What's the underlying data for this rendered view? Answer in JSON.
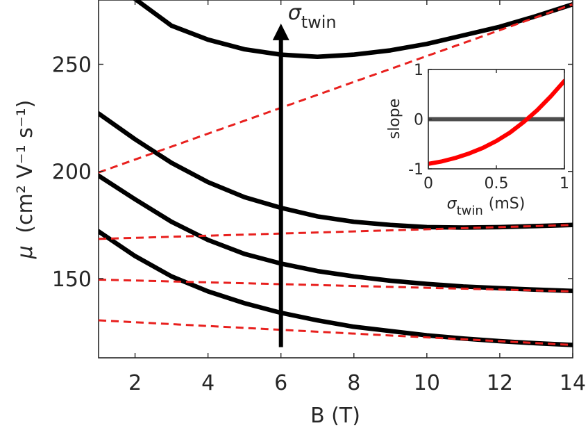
{
  "chart_data": [
    {
      "type": "line",
      "xlabel": "B (T)",
      "ylabel": {
        "symbol": "μ",
        "unit": "(cm² V⁻¹ s⁻¹)"
      },
      "xlim": [
        1,
        14
      ],
      "ylim": [
        113,
        280
      ],
      "xticks": [
        2,
        4,
        6,
        8,
        10,
        12,
        14
      ],
      "yticks": [
        150,
        200,
        250
      ],
      "grid": false,
      "arrow": {
        "x": 6,
        "y_from": 118,
        "y_to": 269,
        "label": "σ",
        "label_sub": "twin"
      },
      "series": [
        {
          "style": "solid",
          "color": "#000000",
          "x": [
            1,
            2,
            3,
            4,
            5,
            6,
            7,
            8,
            9,
            10,
            11,
            12,
            13,
            14
          ],
          "y": [
            310,
            280.5,
            268,
            261.5,
            257,
            254.5,
            253.5,
            254.5,
            256.5,
            259.5,
            263.5,
            267.5,
            272.5,
            278
          ]
        },
        {
          "style": "solid",
          "color": "#000000",
          "x": [
            1,
            2,
            3,
            4,
            5,
            6,
            7,
            8,
            9,
            10,
            11,
            12,
            13,
            14
          ],
          "y": [
            227,
            215,
            204,
            195,
            188,
            183,
            179,
            176.5,
            175,
            174,
            173.8,
            174,
            174.5,
            175
          ]
        },
        {
          "style": "solid",
          "color": "#000000",
          "x": [
            1,
            2,
            3,
            4,
            5,
            6,
            7,
            8,
            9,
            10,
            11,
            12,
            13,
            14
          ],
          "y": [
            198,
            187,
            176.5,
            168,
            161.5,
            157,
            153.5,
            151,
            149,
            147.5,
            146.3,
            145.5,
            144.8,
            144.2
          ]
        },
        {
          "style": "solid",
          "color": "#000000",
          "x": [
            1,
            2,
            3,
            4,
            5,
            6,
            7,
            8,
            9,
            10,
            11,
            12,
            13,
            14
          ],
          "y": [
            172,
            160.5,
            151,
            144,
            138.5,
            134,
            130.5,
            127.5,
            125.5,
            123.5,
            122,
            120.8,
            119.8,
            119
          ]
        },
        {
          "style": "dashed",
          "color": "#e8201e",
          "x": [
            1,
            14
          ],
          "y": [
            199.5,
            278
          ]
        },
        {
          "style": "dashed",
          "color": "#e8201e",
          "x": [
            1,
            14
          ],
          "y": [
            168.5,
            175
          ]
        },
        {
          "style": "dashed",
          "color": "#e8201e",
          "x": [
            1,
            14
          ],
          "y": [
            149.5,
            144
          ]
        },
        {
          "style": "dashed",
          "color": "#e8201e",
          "x": [
            1,
            14
          ],
          "y": [
            130.5,
            119
          ]
        }
      ]
    },
    {
      "type": "line",
      "xlabel": {
        "symbol": "σ",
        "sub": "twin",
        "unit": "(mS)"
      },
      "ylabel": "slope",
      "xlim": [
        0,
        1
      ],
      "ylim": [
        -1,
        1
      ],
      "xticks": [
        0,
        0.5,
        1
      ],
      "xtick_labels": [
        "0",
        "0.5",
        "1"
      ],
      "yticks": [
        -1,
        0,
        1
      ],
      "ytick_labels": [
        "-1",
        "0",
        "1"
      ],
      "grid": false,
      "series": [
        {
          "style": "solid",
          "color": "#4d4d4d",
          "x": [
            0,
            1
          ],
          "y": [
            0,
            0
          ]
        },
        {
          "style": "solid",
          "color": "#ff0000",
          "x": [
            0,
            0.1,
            0.2,
            0.3,
            0.4,
            0.5,
            0.6,
            0.7,
            0.8,
            0.9,
            1.0
          ],
          "y": [
            -0.9,
            -0.85,
            -0.78,
            -0.69,
            -0.58,
            -0.44,
            -0.27,
            -0.06,
            0.18,
            0.46,
            0.77
          ]
        }
      ]
    }
  ]
}
